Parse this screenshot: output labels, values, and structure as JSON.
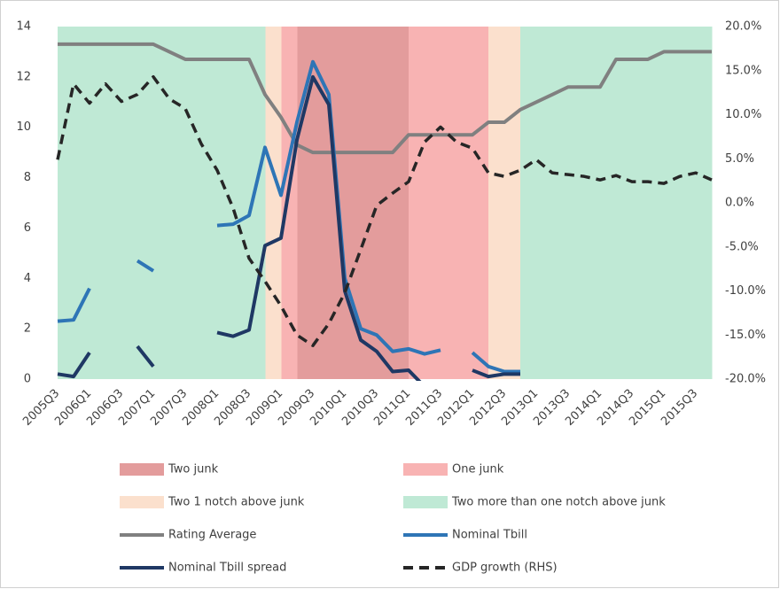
{
  "chart_data": {
    "type": "line",
    "categories": [
      "2005Q3",
      null,
      "2006Q1",
      null,
      "2006Q3",
      null,
      "2007Q1",
      null,
      "2007Q3",
      null,
      "2008Q1",
      null,
      "2008Q3",
      null,
      "2009Q1",
      null,
      "2009Q3",
      null,
      "2010Q1",
      null,
      "2010Q3",
      null,
      "2011Q1",
      null,
      "2011Q3",
      null,
      "2012Q1",
      null,
      "2012Q3",
      null,
      "2013Q1",
      null,
      "2013Q3",
      null,
      "2014Q1",
      null,
      "2014Q3",
      null,
      "2015Q1",
      null,
      "2015Q3",
      null
    ],
    "series": [
      {
        "name": "Two junk",
        "type": "bar",
        "color": "#e39c9c",
        "values": [
          null,
          null,
          null,
          null,
          null,
          null,
          null,
          null,
          null,
          null,
          null,
          null,
          null,
          null,
          null,
          14,
          14,
          14,
          14,
          14,
          14,
          14,
          null,
          null,
          null,
          null,
          null,
          null,
          null,
          null,
          null,
          null,
          null,
          null,
          null,
          null,
          null,
          null,
          null,
          null,
          null,
          null
        ]
      },
      {
        "name": "One junk",
        "type": "bar",
        "color": "#f8b3b3",
        "values": [
          null,
          null,
          null,
          null,
          null,
          null,
          null,
          null,
          null,
          null,
          null,
          null,
          null,
          null,
          14,
          null,
          null,
          null,
          null,
          null,
          null,
          null,
          14,
          14,
          14,
          14,
          14,
          null,
          null,
          null,
          null,
          null,
          null,
          null,
          null,
          null,
          null,
          null,
          null,
          null,
          null,
          null
        ]
      },
      {
        "name": "Two 1 notch above junk",
        "type": "bar",
        "color": "#fbe0cd",
        "values": [
          null,
          null,
          null,
          null,
          null,
          null,
          null,
          null,
          null,
          null,
          null,
          null,
          null,
          14,
          null,
          null,
          null,
          null,
          null,
          null,
          null,
          null,
          null,
          null,
          null,
          null,
          null,
          14,
          14,
          null,
          null,
          null,
          null,
          null,
          null,
          null,
          null,
          null,
          null,
          null,
          null,
          null
        ]
      },
      {
        "name": "Two more than one notch above junk",
        "type": "bar",
        "color": "#bfe9d5",
        "values": [
          14,
          14,
          14,
          14,
          14,
          14,
          14,
          14,
          14,
          14,
          14,
          14,
          14,
          null,
          null,
          null,
          null,
          null,
          null,
          null,
          null,
          null,
          null,
          null,
          null,
          null,
          null,
          null,
          null,
          14,
          14,
          14,
          14,
          14,
          14,
          14,
          14,
          14,
          14,
          14,
          14,
          null
        ]
      },
      {
        "name": "Rating Average",
        "type": "line",
        "color": "#808080",
        "values": [
          13.3,
          13.3,
          13.3,
          13.3,
          13.3,
          13.3,
          13.3,
          13.0,
          12.7,
          12.7,
          12.7,
          12.7,
          12.7,
          11.3,
          10.4,
          9.3,
          9.0,
          9.0,
          9.0,
          9.0,
          9.0,
          9.0,
          9.7,
          9.7,
          9.7,
          9.7,
          9.7,
          10.2,
          10.2,
          10.7,
          11.0,
          11.3,
          11.6,
          11.6,
          11.6,
          12.7,
          12.7,
          12.7,
          13.0,
          13.0,
          13.0,
          13.0
        ]
      },
      {
        "name": "Nominal Tbill",
        "type": "line",
        "color": "#2e75b6",
        "values": [
          2.3,
          2.35,
          3.6,
          null,
          null,
          4.7,
          4.3,
          null,
          null,
          null,
          6.1,
          6.15,
          6.5,
          9.2,
          7.3,
          10.2,
          12.6,
          11.3,
          4.0,
          2.0,
          1.75,
          1.1,
          1.2,
          1.0,
          1.15,
          null,
          1.05,
          0.5,
          0.3,
          0.3,
          null,
          null,
          null,
          null,
          null,
          null,
          null,
          null,
          null,
          null,
          null,
          null
        ]
      },
      {
        "name": "Nominal Tbill spread",
        "type": "line",
        "color": "#1f3864",
        "values": [
          0.2,
          0.1,
          1.05,
          null,
          null,
          1.3,
          0.5,
          null,
          null,
          null,
          1.85,
          1.7,
          1.95,
          5.3,
          5.6,
          9.5,
          12.0,
          10.9,
          3.5,
          1.55,
          1.1,
          0.3,
          0.35,
          -0.3,
          null,
          null,
          0.35,
          0.1,
          0.2,
          0.2,
          null,
          null,
          null,
          null,
          null,
          null,
          null,
          null,
          null,
          null,
          null,
          null
        ]
      },
      {
        "name": "GDP growth (RHS)",
        "type": "line",
        "color": "#262626",
        "dashed": true,
        "axis": "y2",
        "values": [
          4.9,
          13.5,
          11.3,
          13.5,
          11.5,
          12.3,
          14.3,
          11.8,
          10.7,
          6.7,
          3.7,
          -0.6,
          -6.3,
          -8.9,
          -11.7,
          -15.0,
          -16.2,
          -13.7,
          -10.2,
          -5.3,
          -0.3,
          1.1,
          2.4,
          6.9,
          8.6,
          6.9,
          6.2,
          3.4,
          3.0,
          3.7,
          4.9,
          3.4,
          3.2,
          3.0,
          2.6,
          3.1,
          2.4,
          2.4,
          2.2,
          3.0,
          3.4,
          2.6
        ]
      }
    ],
    "ylim": [
      0,
      14
    ],
    "yticks": [
      0,
      2,
      4,
      6,
      8,
      10,
      12,
      14
    ],
    "y2lim": [
      -20,
      20
    ],
    "y2ticks": [
      {
        "value": -20,
        "label": "-20.0%"
      },
      {
        "value": -15,
        "label": "-15.0%"
      },
      {
        "value": -10,
        "label": "-10.0%"
      },
      {
        "value": -5,
        "label": "-5.0%"
      },
      {
        "value": 0,
        "label": "0.0%"
      },
      {
        "value": 5,
        "label": "5.0%"
      },
      {
        "value": 10,
        "label": "10.0%"
      },
      {
        "value": 15,
        "label": "15.0%"
      },
      {
        "value": 20,
        "label": "20.0%"
      }
    ]
  }
}
